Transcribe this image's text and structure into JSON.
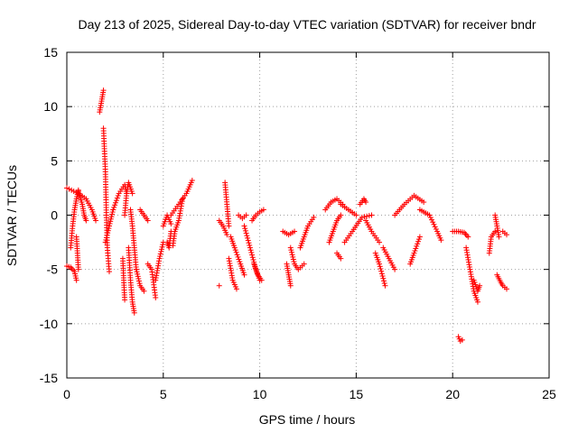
{
  "chart_data": {
    "type": "scatter",
    "title": "Day 213 of 2025, Sidereal Day-to-day VTEC variation (SDTVAR) for receiver bndr",
    "xlabel": "GPS time / hours",
    "ylabel": "SDTVAR / TECUs",
    "xlim": [
      0,
      25
    ],
    "ylim": [
      -15,
      15
    ],
    "xticks": [
      "0",
      "5",
      "10",
      "15",
      "20",
      "25"
    ],
    "yticks": [
      "-15",
      "-10",
      "-5",
      "0",
      "5",
      "10",
      "15"
    ],
    "grid": true,
    "marker": "+",
    "color": "#ff0000",
    "series": [
      {
        "name": "SDTVAR",
        "segments": [
          {
            "x": [
              0.0,
              0.6,
              1.0,
              1.3,
              1.5
            ],
            "y": [
              2.5,
              2.0,
              1.5,
              0.5,
              -0.5
            ]
          },
          {
            "x": [
              0.0,
              0.2,
              0.4,
              0.5
            ],
            "y": [
              -4.7,
              -4.8,
              -5.2,
              -6.0
            ]
          },
          {
            "x": [
              0.2,
              0.3,
              0.4,
              0.5,
              0.6
            ],
            "y": [
              -3.0,
              -1.0,
              0.5,
              1.5,
              2.3
            ]
          },
          {
            "x": [
              0.5,
              0.55,
              0.6
            ],
            "y": [
              -2.0,
              -3.5,
              -5.0
            ]
          },
          {
            "x": [
              0.6,
              0.8,
              0.9,
              1.0
            ],
            "y": [
              2.2,
              1.0,
              0.0,
              -0.5
            ]
          },
          {
            "x": [
              1.7,
              1.8,
              1.9
            ],
            "y": [
              9.5,
              10.5,
              11.5
            ]
          },
          {
            "x": [
              1.9,
              2.0,
              2.05,
              2.1,
              2.2
            ],
            "y": [
              8.0,
              4.0,
              0.0,
              -3.0,
              -5.2
            ]
          },
          {
            "x": [
              2.0,
              2.2,
              2.4
            ],
            "y": [
              -2.5,
              -1.0,
              0.5
            ]
          },
          {
            "x": [
              2.4,
              2.7,
              3.0,
              3.1
            ],
            "y": [
              0.5,
              2.0,
              2.8,
              2.0
            ]
          },
          {
            "x": [
              2.9,
              2.95,
              3.0
            ],
            "y": [
              -4.0,
              -6.0,
              -7.8
            ]
          },
          {
            "x": [
              3.0,
              3.1,
              3.2,
              3.4
            ],
            "y": [
              0.0,
              2.0,
              3.0,
              2.0
            ]
          },
          {
            "x": [
              3.2,
              3.3,
              3.4,
              3.5
            ],
            "y": [
              -3.0,
              -6.0,
              -8.0,
              -9.0
            ]
          },
          {
            "x": [
              3.3,
              3.4,
              3.5,
              3.6
            ],
            "y": [
              0.5,
              -1.0,
              -3.0,
              -5.0
            ]
          },
          {
            "x": [
              3.6,
              3.8,
              4.0
            ],
            "y": [
              -5.0,
              -6.5,
              -7.0
            ]
          },
          {
            "x": [
              3.8,
              4.0,
              4.2
            ],
            "y": [
              0.5,
              0.0,
              -0.5
            ]
          },
          {
            "x": [
              4.2,
              4.4,
              4.6
            ],
            "y": [
              -4.5,
              -5.0,
              -7.6
            ]
          },
          {
            "x": [
              4.6,
              4.8,
              5.0
            ],
            "y": [
              -6.0,
              -4.0,
              -2.5
            ]
          },
          {
            "x": [
              5.0,
              5.2,
              5.4
            ],
            "y": [
              -1.0,
              0.0,
              -0.8
            ]
          },
          {
            "x": [
              5.2,
              5.3,
              5.4
            ],
            "y": [
              -2.5,
              -3.0,
              -1.5
            ]
          },
          {
            "x": [
              5.4,
              5.8,
              6.2,
              6.5
            ],
            "y": [
              0.0,
              1.0,
              2.0,
              3.2
            ]
          },
          {
            "x": [
              5.5,
              5.6,
              5.8,
              6.0
            ],
            "y": [
              -2.8,
              -1.5,
              -0.5,
              1.5
            ]
          },
          {
            "x": [
              7.9,
              8.1,
              8.3
            ],
            "y": [
              -0.5,
              -1.0,
              -1.8
            ]
          },
          {
            "x": [
              7.9
            ],
            "y": [
              -6.5
            ]
          },
          {
            "x": [
              8.2,
              8.3,
              8.4
            ],
            "y": [
              3.0,
              1.0,
              -1.0
            ]
          },
          {
            "x": [
              8.4,
              8.6,
              8.8
            ],
            "y": [
              -4.0,
              -6.0,
              -6.8
            ]
          },
          {
            "x": [
              8.5,
              8.7,
              9.0,
              9.2
            ],
            "y": [
              -2.0,
              -3.0,
              -4.5,
              -5.5
            ]
          },
          {
            "x": [
              8.9,
              9.1,
              9.3
            ],
            "y": [
              0.0,
              -0.3,
              0.0
            ]
          },
          {
            "x": [
              9.2,
              9.5,
              9.8,
              10.0
            ],
            "y": [
              -1.0,
              -3.0,
              -5.0,
              -6.0
            ]
          },
          {
            "x": [
              9.6,
              9.8,
              10.0,
              10.2
            ],
            "y": [
              -0.5,
              0.0,
              0.3,
              0.5
            ]
          },
          {
            "x": [
              9.7,
              9.9,
              10.1
            ],
            "y": [
              -4.5,
              -5.5,
              -6.0
            ]
          },
          {
            "x": [
              11.2,
              11.5,
              11.8
            ],
            "y": [
              -1.5,
              -1.8,
              -1.5
            ]
          },
          {
            "x": [
              11.4,
              11.5,
              11.6
            ],
            "y": [
              -4.5,
              -5.5,
              -6.5
            ]
          },
          {
            "x": [
              11.6,
              11.8,
              12.0,
              12.3
            ],
            "y": [
              -3.0,
              -4.5,
              -5.0,
              -4.5
            ]
          },
          {
            "x": [
              12.1,
              12.3,
              12.5,
              12.8
            ],
            "y": [
              -3.0,
              -2.0,
              -1.0,
              -0.2
            ]
          },
          {
            "x": [
              13.4,
              13.7,
              14.0,
              14.3
            ],
            "y": [
              0.5,
              1.2,
              1.5,
              1.0
            ]
          },
          {
            "x": [
              13.6,
              13.8,
              14.0,
              14.2
            ],
            "y": [
              -2.5,
              -1.5,
              -0.5,
              0.0
            ]
          },
          {
            "x": [
              14.0,
              14.2
            ],
            "y": [
              -3.5,
              -4.0
            ]
          },
          {
            "x": [
              14.2,
              14.6,
              15.0
            ],
            "y": [
              1.0,
              0.5,
              0.0
            ]
          },
          {
            "x": [
              14.4,
              14.8,
              15.3,
              15.8
            ],
            "y": [
              -2.5,
              -1.5,
              -0.2,
              0.0
            ]
          },
          {
            "x": [
              15.2,
              15.4,
              15.5
            ],
            "y": [
              1.0,
              1.5,
              1.2
            ]
          },
          {
            "x": [
              15.5,
              15.8,
              16.2
            ],
            "y": [
              -0.5,
              -1.5,
              -2.5
            ]
          },
          {
            "x": [
              16.0,
              16.2,
              16.5
            ],
            "y": [
              -3.5,
              -4.5,
              -6.5
            ]
          },
          {
            "x": [
              16.4,
              16.7,
              17.0
            ],
            "y": [
              -3.0,
              -4.0,
              -5.0
            ]
          },
          {
            "x": [
              17.0,
              17.5,
              18.0,
              18.5
            ],
            "y": [
              0.0,
              1.0,
              1.8,
              1.2
            ]
          },
          {
            "x": [
              17.8,
              18.0,
              18.3
            ],
            "y": [
              -4.5,
              -3.5,
              -2.0
            ]
          },
          {
            "x": [
              18.3,
              18.8,
              19.2,
              19.4
            ],
            "y": [
              0.5,
              0.0,
              -1.5,
              -2.3
            ]
          },
          {
            "x": [
              20.0,
              20.3,
              20.6,
              20.8
            ],
            "y": [
              -1.5,
              -1.5,
              -1.6,
              -2.0
            ]
          },
          {
            "x": [
              20.7,
              20.9,
              21.1,
              21.3
            ],
            "y": [
              -3.0,
              -5.0,
              -7.0,
              -8.0
            ]
          },
          {
            "x": [
              21.1,
              21.3,
              21.4
            ],
            "y": [
              -6.0,
              -7.0,
              -6.5
            ]
          },
          {
            "x": [
              20.3,
              20.4,
              20.5
            ],
            "y": [
              -11.2,
              -11.6,
              -11.5
            ]
          },
          {
            "x": [
              21.9,
              22.0,
              22.2
            ],
            "y": [
              -3.5,
              -2.0,
              -1.5
            ]
          },
          {
            "x": [
              22.2,
              22.3,
              22.4
            ],
            "y": [
              0.0,
              -1.0,
              -2.0
            ]
          },
          {
            "x": [
              22.3,
              22.5,
              22.6,
              22.8
            ],
            "y": [
              -5.5,
              -6.2,
              -6.5,
              -6.8
            ]
          },
          {
            "x": [
              22.6,
              22.8
            ],
            "y": [
              -1.5,
              -1.8
            ]
          }
        ]
      }
    ]
  }
}
